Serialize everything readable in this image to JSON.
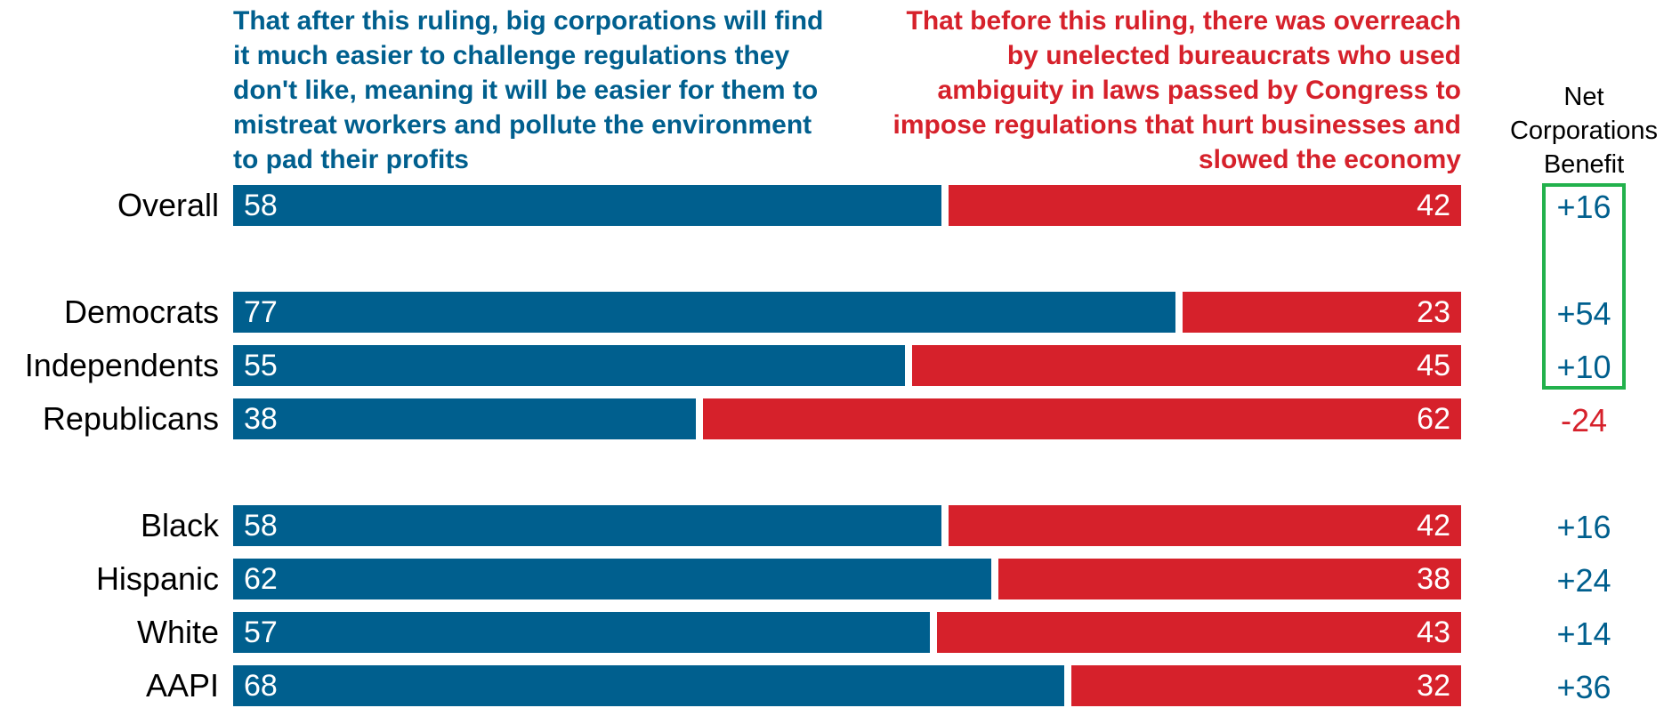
{
  "chart_data": {
    "type": "bar",
    "orientation": "horizontal",
    "stacked": true,
    "categories": [
      "Overall",
      "Democrats",
      "Independents",
      "Republicans",
      "Black",
      "Hispanic",
      "White",
      "AAPI"
    ],
    "groups": [
      [
        "Overall"
      ],
      [
        "Democrats",
        "Independents",
        "Republicans"
      ],
      [
        "Black",
        "Hispanic",
        "White",
        "AAPI"
      ]
    ],
    "series": [
      {
        "name": "That after this ruling, big corporations will find it much easier to challenge regulations they don't like, meaning it will be easier for them to mistreat workers and pollute the environment to pad their profits",
        "values": [
          58,
          77,
          55,
          38,
          58,
          62,
          57,
          68
        ],
        "color": "#005f8e"
      },
      {
        "name": "That before this ruling, there was overreach by unelected bureaucrats who used ambiguity in laws passed by Congress to impose regulations that hurt businesses and slowed the economy",
        "values": [
          42,
          23,
          45,
          62,
          42,
          38,
          43,
          32
        ],
        "color": "#d6212b"
      }
    ],
    "xlim": [
      0,
      100
    ],
    "net": {
      "label_lines": [
        "Net",
        "Corporations",
        "Benefit"
      ],
      "values": [
        "+16",
        "+54",
        "+10",
        "-24",
        "+16",
        "+24",
        "+14",
        "+36"
      ]
    },
    "highlight_color": "#22b14c",
    "grid": false
  }
}
